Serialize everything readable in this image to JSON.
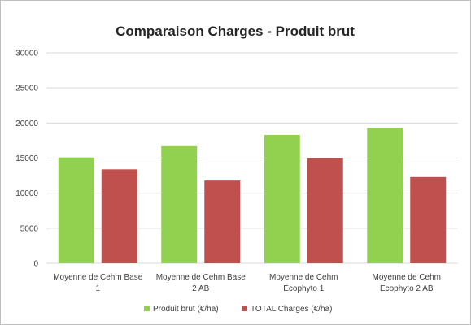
{
  "chart_data": {
    "type": "bar",
    "title": "Comparaison Charges - Produit brut",
    "categories": [
      [
        "Moyenne de Cehm Base",
        "1"
      ],
      [
        "Moyenne de Cehm Base",
        "2 AB"
      ],
      [
        "Moyenne de Cehm",
        "Ecophyto 1"
      ],
      [
        "Moyenne de Cehm",
        "Ecophyto 2 AB"
      ]
    ],
    "series": [
      {
        "name": "Produit brut (€/ha)",
        "color": "#92d050",
        "values": [
          15100,
          16700,
          18300,
          19300
        ]
      },
      {
        "name": "TOTAL Charges (€/ha)",
        "color": "#c0504d",
        "values": [
          13400,
          11800,
          15000,
          12300
        ]
      }
    ],
    "ylim": [
      0,
      30000
    ],
    "yticks": [
      "0",
      "5000",
      "10000",
      "15000",
      "20000",
      "25000",
      "30000"
    ],
    "ytick_values": [
      0,
      5000,
      10000,
      15000,
      20000,
      25000,
      30000
    ],
    "grid": true,
    "legend_position": "bottom",
    "gridline_color": "#d9d9d9"
  }
}
